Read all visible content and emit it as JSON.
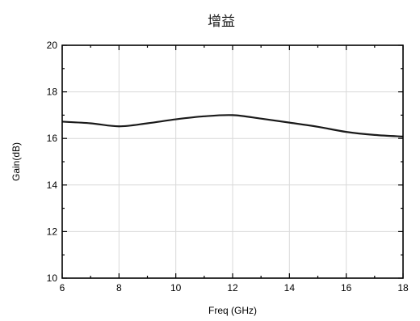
{
  "chart_data": {
    "type": "line",
    "title": "增益",
    "xlabel": "Freq (GHz)",
    "ylabel": "Gain(dB)",
    "xlim": [
      6,
      18
    ],
    "ylim": [
      10,
      20
    ],
    "x_ticks": [
      "6",
      "8",
      "10",
      "12",
      "14",
      "16",
      "18"
    ],
    "y_ticks": [
      "10",
      "12",
      "14",
      "16",
      "18",
      "20"
    ],
    "grid": true,
    "series": [
      {
        "x": [
          6,
          7,
          8,
          9,
          10,
          11,
          12,
          13,
          14,
          15,
          16,
          17,
          18
        ],
        "values": [
          16.72,
          16.65,
          16.52,
          16.65,
          16.82,
          16.95,
          17.0,
          16.85,
          16.68,
          16.5,
          16.28,
          16.15,
          16.08
        ],
        "color": "#1a1a1a"
      }
    ]
  }
}
